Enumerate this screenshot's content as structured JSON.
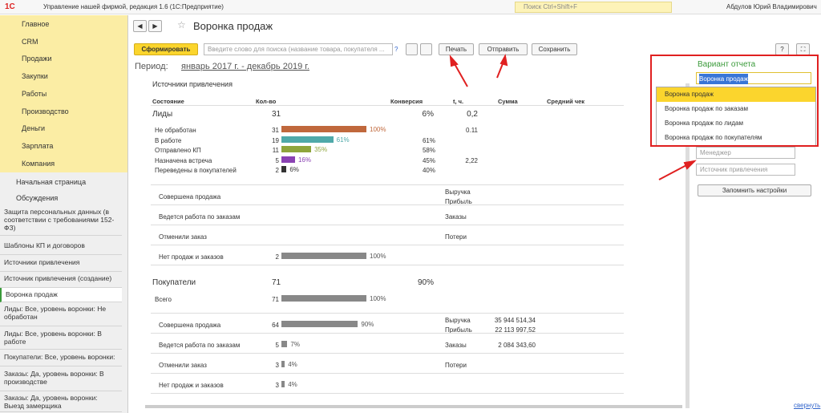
{
  "header": {
    "app_title": "Управление нашей фирмой, редакция 1.6  (1С:Предприятие)",
    "search": "Поиск Ctrl+Shift+F",
    "user": "Абдулов Юрий Владимирович"
  },
  "menu": [
    "Главное",
    "CRM",
    "Продажи",
    "Закупки",
    "Работы",
    "Производство",
    "Деньги",
    "Зарплата",
    "Компания"
  ],
  "nav": [
    "Начальная страница",
    "Обсуждения"
  ],
  "history": [
    "Защита персональных данных (в соответствии с требованиями 152-ФЗ)",
    "Шаблоны КП и договоров",
    "Источники привлечения",
    "Источник привлечения (создание)",
    "Воронка продаж",
    "Лиды: Все, уровень воронки: Не обработан",
    "Лиды: Все, уровень воронки: В работе",
    "Покупатели: Все, уровень воронки:",
    "Заказы: Да, уровень воронки: В производстве",
    "Заказы: Да, уровень воронки: Выезд замерщика"
  ],
  "report": {
    "title": "Воронка продаж",
    "generate": "Сформировать",
    "search_placeholder": "Введите слово для поиска (название товара, покупателя ...",
    "help": "?",
    "print": "Печать",
    "send": "Отправить",
    "save": "Сохранить",
    "period_label": "Период:",
    "period": "январь 2017 г. - декабрь 2019 г.",
    "section": "Источники привлечения",
    "columns": [
      "Состояние",
      "Кол-во",
      "Конверсия",
      "t, ч.",
      "Сумма",
      "Средний чек"
    ],
    "groups": [
      {
        "name": "Лиды",
        "count": "31",
        "conversion": "6%",
        "t": "0,2",
        "rows": [
          {
            "name": "Не обработан",
            "count": "31",
            "pct": 100,
            "pct_label": "100%",
            "color": "#c0683c",
            "conversion": "",
            "t": "0.11"
          },
          {
            "name": "В работе",
            "count": "19",
            "pct": 61,
            "pct_label": "61%",
            "color": "#4fa9a9",
            "conversion": "61%",
            "t": ""
          },
          {
            "name": "Отправлено КП",
            "count": "11",
            "pct": 35,
            "pct_label": "35%",
            "color": "#8ea53c",
            "conversion": "58%",
            "t": ""
          },
          {
            "name": "Назначена встреча",
            "count": "5",
            "pct": 16,
            "pct_label": "16%",
            "color": "#8a42b3",
            "conversion": "45%",
            "t": "2,22"
          },
          {
            "name": "Переведены в покупателей",
            "count": "2",
            "pct": 6,
            "pct_label": "6%",
            "color": "#333333",
            "conversion": "40%",
            "t": ""
          }
        ],
        "outcomes": [
          {
            "name": "Совершена продажа",
            "right": [
              "Выручка",
              "Прибыль"
            ]
          },
          {
            "name": "Ведется работа по заказам",
            "right": [
              "Заказы"
            ]
          },
          {
            "name": "Отменили заказ",
            "right": [
              "Потери"
            ]
          },
          {
            "name": "Нет продаж и заказов",
            "count": "2",
            "pct": 100,
            "pct_label": "100%"
          }
        ]
      },
      {
        "name": "Покупатели",
        "count": "71",
        "conversion": "90%",
        "t": "",
        "rows": [
          {
            "name": "Всего",
            "count": "71",
            "pct": 100,
            "pct_label": "100%",
            "color": "#888888",
            "conversion": "",
            "t": ""
          }
        ],
        "outcomes": [
          {
            "name": "Совершена продажа",
            "count": "64",
            "pct": 90,
            "pct_label": "90%",
            "right": [
              "Выручка",
              "Прибыль"
            ],
            "amounts": [
              "35 944 514,34",
              "22 113 997,52"
            ]
          },
          {
            "name": "Ведется работа по заказам",
            "count": "5",
            "pct": 7,
            "pct_label": "7%",
            "right": [
              "Заказы"
            ],
            "amounts": [
              "2 084 343,60"
            ]
          },
          {
            "name": "Отменили заказ",
            "count": "3",
            "pct": 4,
            "pct_label": "4%",
            "right": [
              "Потери"
            ]
          },
          {
            "name": "Нет продаж и заказов",
            "count": "3",
            "pct": 4,
            "pct_label": "4%"
          }
        ]
      }
    ]
  },
  "panel": {
    "label": "Вариант отчета",
    "selected": "Воронка продаж",
    "options": [
      "Воронка продаж",
      "Воронка продаж по заказам",
      "Воронка продаж по лидам",
      "Воронка продаж по покупателям"
    ],
    "manager": "Менеджер",
    "source": "Источник привлечения",
    "remember": "Запомнить настройки",
    "collapse": "свернуть"
  }
}
